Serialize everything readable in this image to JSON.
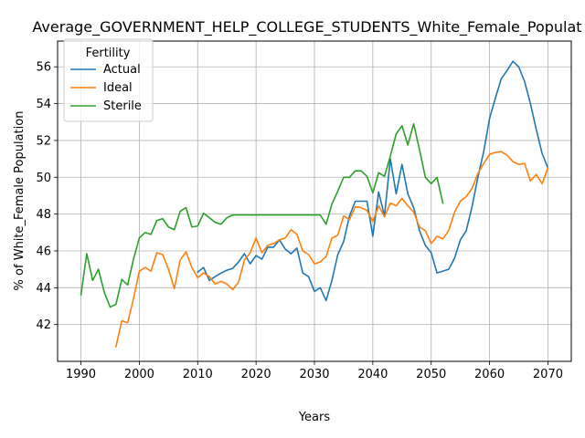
{
  "chart_data": {
    "type": "line",
    "title": "Average_GOVERNMENT_HELP_COLLEGE_STUDENTS_White_Female_Populat",
    "xlabel": "Years",
    "ylabel": "% of White_Female Population",
    "xlim": [
      1986,
      2074
    ],
    "ylim": [
      40,
      57.4
    ],
    "xticks": [
      1990,
      2000,
      2010,
      2020,
      2030,
      2040,
      2050,
      2060,
      2070
    ],
    "yticks": [
      42,
      44,
      46,
      48,
      50,
      52,
      54,
      56
    ],
    "grid": true,
    "legend": {
      "title": "Fertility",
      "position": "top-left"
    },
    "series": [
      {
        "name": "Actual",
        "color": "#1f77b4",
        "x": [
          2010,
          2011,
          2012,
          2013,
          2014,
          2015,
          2016,
          2017,
          2018,
          2019,
          2020,
          2021,
          2022,
          2023,
          2024,
          2025,
          2026,
          2027,
          2028,
          2029,
          2030,
          2031,
          2032,
          2033,
          2034,
          2035,
          2036,
          2037,
          2038,
          2039,
          2040,
          2041,
          2042,
          2043,
          2044,
          2045,
          2046,
          2047,
          2048,
          2049,
          2050,
          2051,
          2052,
          2053,
          2054,
          2055,
          2056,
          2057,
          2058,
          2059,
          2060,
          2061,
          2062,
          2063,
          2064,
          2065,
          2066,
          2067,
          2068,
          2069,
          2070
        ],
        "values": [
          44.85,
          45.1,
          44.4,
          44.6,
          44.8,
          44.95,
          45.05,
          45.4,
          45.85,
          45.3,
          45.75,
          45.55,
          46.2,
          46.2,
          46.6,
          46.1,
          45.85,
          46.15,
          44.8,
          44.6,
          43.8,
          44.0,
          43.3,
          44.4,
          45.8,
          46.5,
          47.9,
          48.7,
          48.7,
          48.7,
          46.8,
          49.2,
          47.9,
          51.0,
          49.1,
          50.7,
          49.1,
          48.35,
          47.1,
          46.3,
          45.9,
          44.8,
          44.9,
          45.0,
          45.6,
          46.6,
          47.1,
          48.4,
          50.0,
          51.4,
          53.2,
          54.3,
          55.35,
          55.8,
          56.3,
          56.0,
          55.2,
          54.0,
          52.6,
          51.3,
          50.5
        ]
      },
      {
        "name": "Ideal",
        "color": "#ff7f0e",
        "x": [
          1996,
          1997,
          1998,
          1999,
          2000,
          2001,
          2002,
          2003,
          2004,
          2005,
          2006,
          2007,
          2008,
          2009,
          2010,
          2011,
          2012,
          2013,
          2014,
          2015,
          2016,
          2017,
          2018,
          2019,
          2020,
          2021,
          2022,
          2023,
          2024,
          2025,
          2026,
          2027,
          2028,
          2029,
          2030,
          2031,
          2032,
          2033,
          2034,
          2035,
          2036,
          2037,
          2038,
          2039,
          2040,
          2041,
          2042,
          2043,
          2044,
          2045,
          2046,
          2047,
          2048,
          2049,
          2050,
          2051,
          2052,
          2053,
          2054,
          2055,
          2056,
          2057,
          2058,
          2059,
          2060,
          2061,
          2062,
          2063,
          2064,
          2065,
          2066,
          2067,
          2068,
          2069,
          2070
        ],
        "values": [
          40.8,
          42.2,
          42.1,
          43.4,
          44.9,
          45.1,
          44.9,
          45.9,
          45.8,
          45.0,
          43.95,
          45.5,
          45.95,
          45.1,
          44.55,
          44.8,
          44.6,
          44.2,
          44.35,
          44.2,
          43.9,
          44.3,
          45.5,
          45.9,
          46.7,
          45.9,
          46.3,
          46.4,
          46.6,
          46.7,
          47.15,
          46.9,
          46.0,
          45.8,
          45.3,
          45.4,
          45.7,
          46.7,
          46.85,
          47.9,
          47.7,
          48.4,
          48.35,
          48.2,
          47.6,
          48.45,
          47.85,
          48.6,
          48.45,
          48.85,
          48.45,
          48.1,
          47.3,
          47.1,
          46.4,
          46.8,
          46.65,
          47.1,
          48.1,
          48.7,
          48.95,
          49.4,
          50.2,
          50.75,
          51.25,
          51.35,
          51.4,
          51.2,
          50.85,
          50.7,
          50.75,
          49.8,
          50.15,
          49.65,
          50.5
        ]
      },
      {
        "name": "Sterile",
        "color": "#2ca02c",
        "x": [
          1990,
          1991,
          1992,
          1993,
          1994,
          1995,
          1996,
          1997,
          1998,
          1999,
          2000,
          2001,
          2002,
          2003,
          2004,
          2005,
          2006,
          2007,
          2008,
          2009,
          2010,
          2011,
          2012,
          2013,
          2014,
          2015,
          2016,
          2017,
          2018,
          2019,
          2020,
          2021,
          2022,
          2023,
          2024,
          2025,
          2026,
          2027,
          2028,
          2029,
          2030,
          2031,
          2032,
          2033,
          2034,
          2035,
          2036,
          2037,
          2038,
          2039,
          2040,
          2041,
          2042,
          2043,
          2044,
          2045,
          2046,
          2047,
          2048,
          2049,
          2050,
          2051,
          2052
        ],
        "values": [
          43.6,
          45.85,
          44.4,
          45.0,
          43.75,
          42.95,
          43.1,
          44.45,
          44.15,
          45.55,
          46.7,
          47.0,
          46.9,
          47.65,
          47.75,
          47.3,
          47.15,
          48.15,
          48.35,
          47.3,
          47.35,
          48.05,
          47.8,
          47.55,
          47.45,
          47.8,
          47.95,
          47.95,
          47.95,
          47.95,
          47.95,
          47.95,
          47.95,
          47.95,
          47.95,
          47.95,
          47.95,
          47.95,
          47.95,
          47.95,
          47.95,
          47.95,
          47.45,
          48.55,
          49.25,
          50.0,
          50.0,
          50.35,
          50.35,
          50.05,
          49.15,
          50.25,
          50.05,
          51.15,
          52.35,
          52.8,
          51.75,
          52.9,
          51.5,
          50.0,
          49.65,
          50.0,
          48.6
        ]
      }
    ]
  }
}
